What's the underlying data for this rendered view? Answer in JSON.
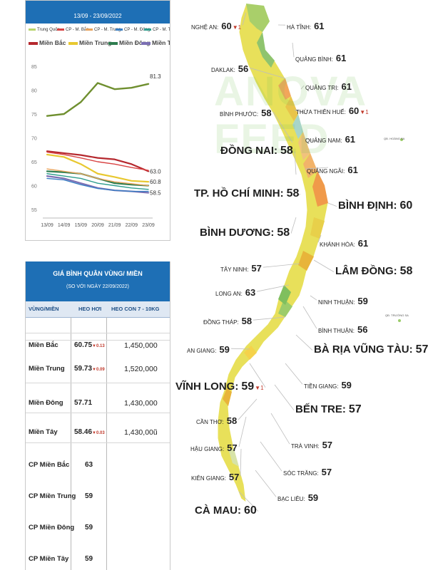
{
  "chart_data": {
    "type": "line",
    "title": "",
    "date_range": "13/09 - 23/09/2022",
    "categories": [
      "13/09",
      "14/09",
      "15/09",
      "20/09",
      "21/09",
      "22/09",
      "23/09"
    ],
    "ylim": [
      55,
      85
    ],
    "yticks": [
      55,
      60,
      65,
      70,
      75,
      80,
      85
    ],
    "grid": false,
    "legend_position": "top",
    "legend_small": [
      {
        "name": "Trung Quốc",
        "color": "#b8d46b"
      },
      {
        "name": "CP - M. Bắc",
        "color": "#d84343"
      },
      {
        "name": "CP - M. Trung",
        "color": "#e8a35c"
      },
      {
        "name": "CP - M. Đông",
        "color": "#3a7fc4"
      },
      {
        "name": "CP - M. Tây",
        "color": "#2f9e8f"
      }
    ],
    "series": [
      {
        "name": "Trung Quốc",
        "color": "#6f8f2f",
        "values": [
          74.6,
          75,
          77.5,
          81.5,
          80.2,
          80.5,
          81.3
        ],
        "end_label": "81.3"
      },
      {
        "name": "Miền Bắc",
        "color": "#b5282e",
        "values": [
          67.2,
          66.8,
          66.4,
          65.8,
          65.5,
          64.5,
          63.0
        ],
        "end_label": "63.0"
      },
      {
        "name": "Miền Trung",
        "color": "#e8c830",
        "values": [
          66.5,
          66,
          64.5,
          62.5,
          61.8,
          61.0,
          60.8
        ],
        "end_label": "60.8"
      },
      {
        "name": "Miền Đông",
        "color": "#2e7d4f",
        "values": [
          63.0,
          62.8,
          62.5,
          61.5,
          60.5,
          60.2,
          60.0
        ],
        "end_label": ""
      },
      {
        "name": "Miền Tây",
        "color": "#7b6fb3",
        "values": [
          62.0,
          61.5,
          60.5,
          59.5,
          59.0,
          58.8,
          58.5
        ],
        "end_label": "58.5"
      },
      {
        "name": "CP - M. Bắc",
        "color": "#d84343",
        "values": [
          67.0,
          66.5,
          65.8,
          65.0,
          64.5,
          63.8,
          63.2
        ],
        "end_label": ""
      },
      {
        "name": "CP - M. Trung",
        "color": "#e8a35c",
        "values": [
          63.5,
          63.0,
          62.5,
          61.5,
          60.8,
          60.4,
          60.0
        ],
        "end_label": ""
      },
      {
        "name": "CP - M. Đông",
        "color": "#3a7fc4",
        "values": [
          61.5,
          61.2,
          60.2,
          59.4,
          59.0,
          58.8,
          58.8
        ],
        "end_label": ""
      },
      {
        "name": "CP - M. Tây",
        "color": "#2f9e8f",
        "values": [
          62.5,
          62.0,
          61.5,
          60.5,
          60.0,
          59.5,
          59.2
        ],
        "end_label": ""
      }
    ]
  },
  "table": {
    "title": "GIÁ BÌNH QUÂN VÙNG/ MIỀN",
    "subtitle": "(SO VỚI NGÀY 22/09/2022)",
    "col_region": "VÙNG/MIỀN",
    "col_live": "HEO HƠI",
    "col_piglet": "HEO CON 7 - 10KG",
    "rows": [
      {
        "region": "Miền Bắc",
        "value": "60.75",
        "change": "0.13",
        "piglet": "1,450,000"
      },
      {
        "region": "Miền Trung",
        "value": "59.73",
        "change": "0.09",
        "piglet": "1,520,000"
      },
      {
        "region": "Miền Đông",
        "value": "57.71",
        "change": "",
        "piglet": "1,430,000"
      },
      {
        "region": "Miền Tây",
        "value": "58.46",
        "change": "0.03",
        "piglet": "1,430,00ũ"
      },
      {
        "region": "CP Miền Bắc",
        "value": "63",
        "change": "",
        "piglet": ""
      },
      {
        "region": "CP Miền Trung",
        "value": "59",
        "change": "",
        "piglet": ""
      },
      {
        "region": "CP Miền Đông",
        "value": "59",
        "change": "",
        "piglet": ""
      },
      {
        "region": "CP Miền Tây",
        "value": "59",
        "change": "",
        "piglet": ""
      }
    ]
  },
  "map": {
    "watermark": "ANOVA FEED",
    "change_marker": "▼",
    "island_labels": [
      "QĐ. HOÀNG SA",
      "QĐ. TRƯỜNG SA"
    ],
    "provinces": [
      {
        "name": "NGHỆ AN:",
        "value": "60",
        "change": "1",
        "size": "s"
      },
      {
        "name": "HÀ TĨNH:",
        "value": "61",
        "change": "",
        "size": "s"
      },
      {
        "name": "QUẢNG BÌNH:",
        "value": "61",
        "change": "",
        "size": "s"
      },
      {
        "name": "DAKLAK:",
        "value": "56",
        "change": "",
        "size": "s"
      },
      {
        "name": "QUẢNG TRỊ:",
        "value": "61",
        "change": "",
        "size": "s"
      },
      {
        "name": "THỪA THIÊN HUẾ:",
        "value": "60",
        "change": "1",
        "size": "s"
      },
      {
        "name": "BÌNH PHƯỚC:",
        "value": "58",
        "change": "",
        "size": "s"
      },
      {
        "name": "QUẢNG NAM:",
        "value": "61",
        "change": "",
        "size": "s"
      },
      {
        "name": "ĐỒNG NAI:",
        "value": "58",
        "change": "",
        "size": "l"
      },
      {
        "name": "QUẢNG NGÃI:",
        "value": "61",
        "change": "",
        "size": "s"
      },
      {
        "name": "TP. HỒ CHÍ MINH:",
        "value": "58",
        "change": "",
        "size": "l"
      },
      {
        "name": "BÌNH ĐỊNH:",
        "value": "60",
        "change": "",
        "size": "l"
      },
      {
        "name": "BÌNH DƯƠNG:",
        "value": "58",
        "change": "",
        "size": "l"
      },
      {
        "name": "KHÁNH HÒA:",
        "value": "61",
        "change": "",
        "size": "s"
      },
      {
        "name": "TÂY NINH:",
        "value": "57",
        "change": "",
        "size": "s"
      },
      {
        "name": "LÂM ĐỒNG:",
        "value": "58",
        "change": "",
        "size": "l"
      },
      {
        "name": "LONG AN:",
        "value": "63",
        "change": "",
        "size": "s"
      },
      {
        "name": "NINH THUẬN:",
        "value": "59",
        "change": "",
        "size": "s"
      },
      {
        "name": "ĐỒNG THÁP:",
        "value": "58",
        "change": "",
        "size": "s"
      },
      {
        "name": "BÌNH THUẬN:",
        "value": "56",
        "change": "",
        "size": "s"
      },
      {
        "name": "AN GIANG:",
        "value": "59",
        "change": "",
        "size": "s"
      },
      {
        "name": "BÀ RỊA VŨNG TÀU:",
        "value": "57",
        "change": "",
        "size": "l"
      },
      {
        "name": "VĨNH LONG:",
        "value": "59",
        "change": "1",
        "size": "l"
      },
      {
        "name": "TIỀN GIANG:",
        "value": "59",
        "change": "",
        "size": "s"
      },
      {
        "name": "BẾN TRE:",
        "value": "57",
        "change": "",
        "size": "l"
      },
      {
        "name": "CẦN THƠ:",
        "value": "58",
        "change": "",
        "size": "s"
      },
      {
        "name": "HẬU GIANG:",
        "value": "57",
        "change": "",
        "size": "s"
      },
      {
        "name": "TRÀ VINH:",
        "value": "57",
        "change": "",
        "size": "s"
      },
      {
        "name": "KIÊN GIANG:",
        "value": "57",
        "change": "",
        "size": "s"
      },
      {
        "name": "SÓC TRĂNG:",
        "value": "57",
        "change": "",
        "size": "s"
      },
      {
        "name": "BẠC LIÊU:",
        "value": "59",
        "change": "",
        "size": "s"
      },
      {
        "name": "CÀ MAU:",
        "value": "60",
        "change": "",
        "size": "l"
      }
    ]
  }
}
